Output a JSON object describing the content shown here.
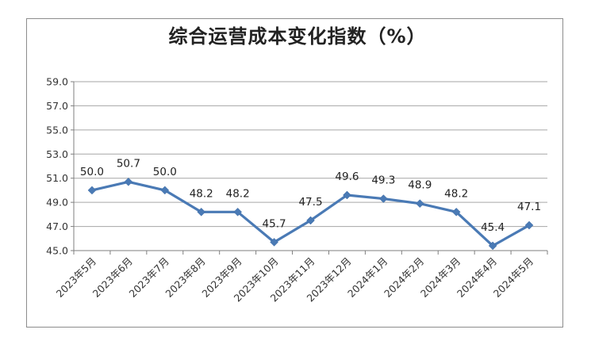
{
  "chart_data": {
    "type": "line",
    "title": "综合运营成本变化指数（%）",
    "xlabel": "",
    "ylabel": "",
    "categories": [
      "2023年5月",
      "2023年6月",
      "2023年7月",
      "2023年8月",
      "2023年9月",
      "2023年10月",
      "2023年11月",
      "2023年12月",
      "2024年1月",
      "2024年2月",
      "2024年3月",
      "2024年4月",
      "2024年5月"
    ],
    "series": [
      {
        "values": [
          50.0,
          50.7,
          50.0,
          48.2,
          48.2,
          45.7,
          47.5,
          49.6,
          49.3,
          48.9,
          48.2,
          45.4,
          47.1
        ]
      }
    ],
    "ylim": [
      45.0,
      59.0
    ],
    "yticks": [
      "45.0",
      "47.0",
      "49.0",
      "51.0",
      "53.0",
      "55.0",
      "57.0",
      "59.0"
    ],
    "grid": true,
    "legend": "none",
    "colors": {
      "line": "#4a7ab5",
      "grid": "#a6a6a6",
      "axis": "#7f7f7f"
    }
  }
}
